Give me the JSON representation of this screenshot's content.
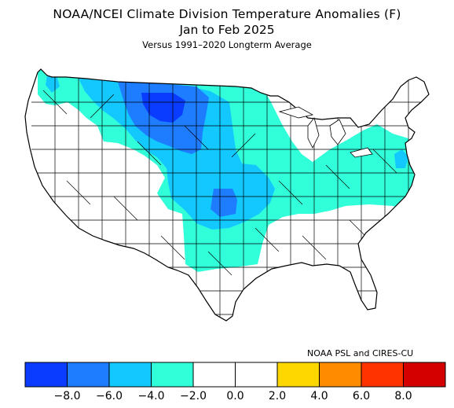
{
  "title": "NOAA/NCEI Climate Division Temperature Anomalies (F)",
  "period": "Jan to Feb 2025",
  "baseline": "Versus 1991–2020 Longterm Average",
  "credit": "NOAA PSL and CIRES-CU",
  "colors": {
    "lt_-8": "#0a3cff",
    "-8_-6": "#1e7dff",
    "-6_-4": "#12c8ff",
    "-4_-2": "#30ffd9",
    "-2_2": "#ffffff",
    "2_4": "#ffd700",
    "4_6": "#ff8c00",
    "6_8": "#ff3300",
    "gt_8": "#d40000"
  },
  "legend": {
    "bins": [
      {
        "range": "< -8.0",
        "color": "#0a3cff"
      },
      {
        "range": "-8.0 to -6.0",
        "color": "#1e7dff"
      },
      {
        "range": "-6.0 to -4.0",
        "color": "#12c8ff"
      },
      {
        "range": "-4.0 to -2.0",
        "color": "#30ffd9"
      },
      {
        "range": "-2.0 to 0.0",
        "color": "#ffffff"
      },
      {
        "range": "0.0 to 2.0",
        "color": "#ffffff"
      },
      {
        "range": "2.0 to 4.0",
        "color": "#ffd700"
      },
      {
        "range": "4.0 to 6.0",
        "color": "#ff8c00"
      },
      {
        "range": "6.0 to 8.0",
        "color": "#ff3300"
      },
      {
        "range": "> 8.0",
        "color": "#d40000"
      }
    ],
    "tick_labels": [
      "−8.0",
      "−6.0",
      "−4.0",
      "−2.0",
      "0.0",
      "2.0",
      "4.0",
      "6.0",
      "8.0"
    ]
  }
}
